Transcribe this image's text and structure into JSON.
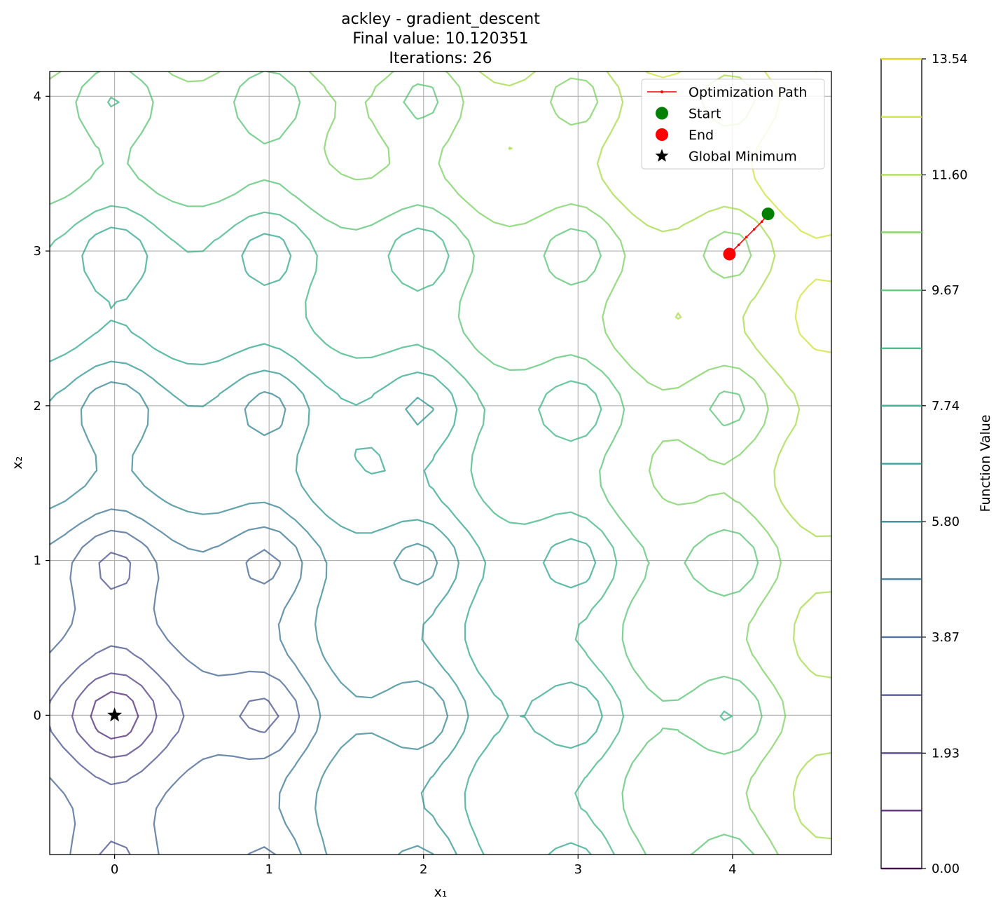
{
  "chart_data": {
    "type": "contour",
    "title_lines": [
      "ackley - gradient_descent",
      "Final value: 10.120351",
      "Iterations: 26"
    ],
    "xlabel": "x₁",
    "ylabel": "x₂",
    "xlim": [
      -0.42,
      4.64
    ],
    "ylim": [
      -0.9,
      4.16
    ],
    "xticks": [
      0,
      1,
      2,
      3,
      4
    ],
    "yticks": [
      0,
      1,
      2,
      3,
      4
    ],
    "grid": true,
    "function": "ackley",
    "contour_levels": [
      0.97,
      1.93,
      2.9,
      3.87,
      4.84,
      5.8,
      6.77,
      7.74,
      8.7,
      9.67,
      10.64,
      11.6,
      12.57,
      13.54
    ],
    "optimization_path": [
      [
        4.23,
        3.24
      ],
      [
        4.19,
        3.19
      ],
      [
        4.14,
        3.14
      ],
      [
        4.09,
        3.09
      ],
      [
        4.04,
        3.04
      ],
      [
        3.98,
        2.98
      ]
    ],
    "start": [
      4.23,
      3.24
    ],
    "end": [
      3.98,
      2.98
    ],
    "global_minimum": [
      0,
      0
    ],
    "legend": {
      "position": "upper-right",
      "entries": [
        {
          "label": "Optimization Path",
          "marker": "line",
          "color": "#ff0000"
        },
        {
          "label": "Start",
          "marker": "circle",
          "color": "#008000"
        },
        {
          "label": "End",
          "marker": "circle",
          "color": "#ff0000"
        },
        {
          "label": "Global Minimum",
          "marker": "star",
          "color": "#000000"
        }
      ]
    },
    "colorbar": {
      "label": "Function Value",
      "range": [
        0.0,
        13.54
      ],
      "tick_labels": [
        "0.00",
        "1.93",
        "3.87",
        "5.80",
        "7.74",
        "9.67",
        "11.60",
        "13.54"
      ],
      "tick_values": [
        0.0,
        1.93,
        3.87,
        5.8,
        7.74,
        9.67,
        11.6,
        13.54
      ]
    }
  }
}
